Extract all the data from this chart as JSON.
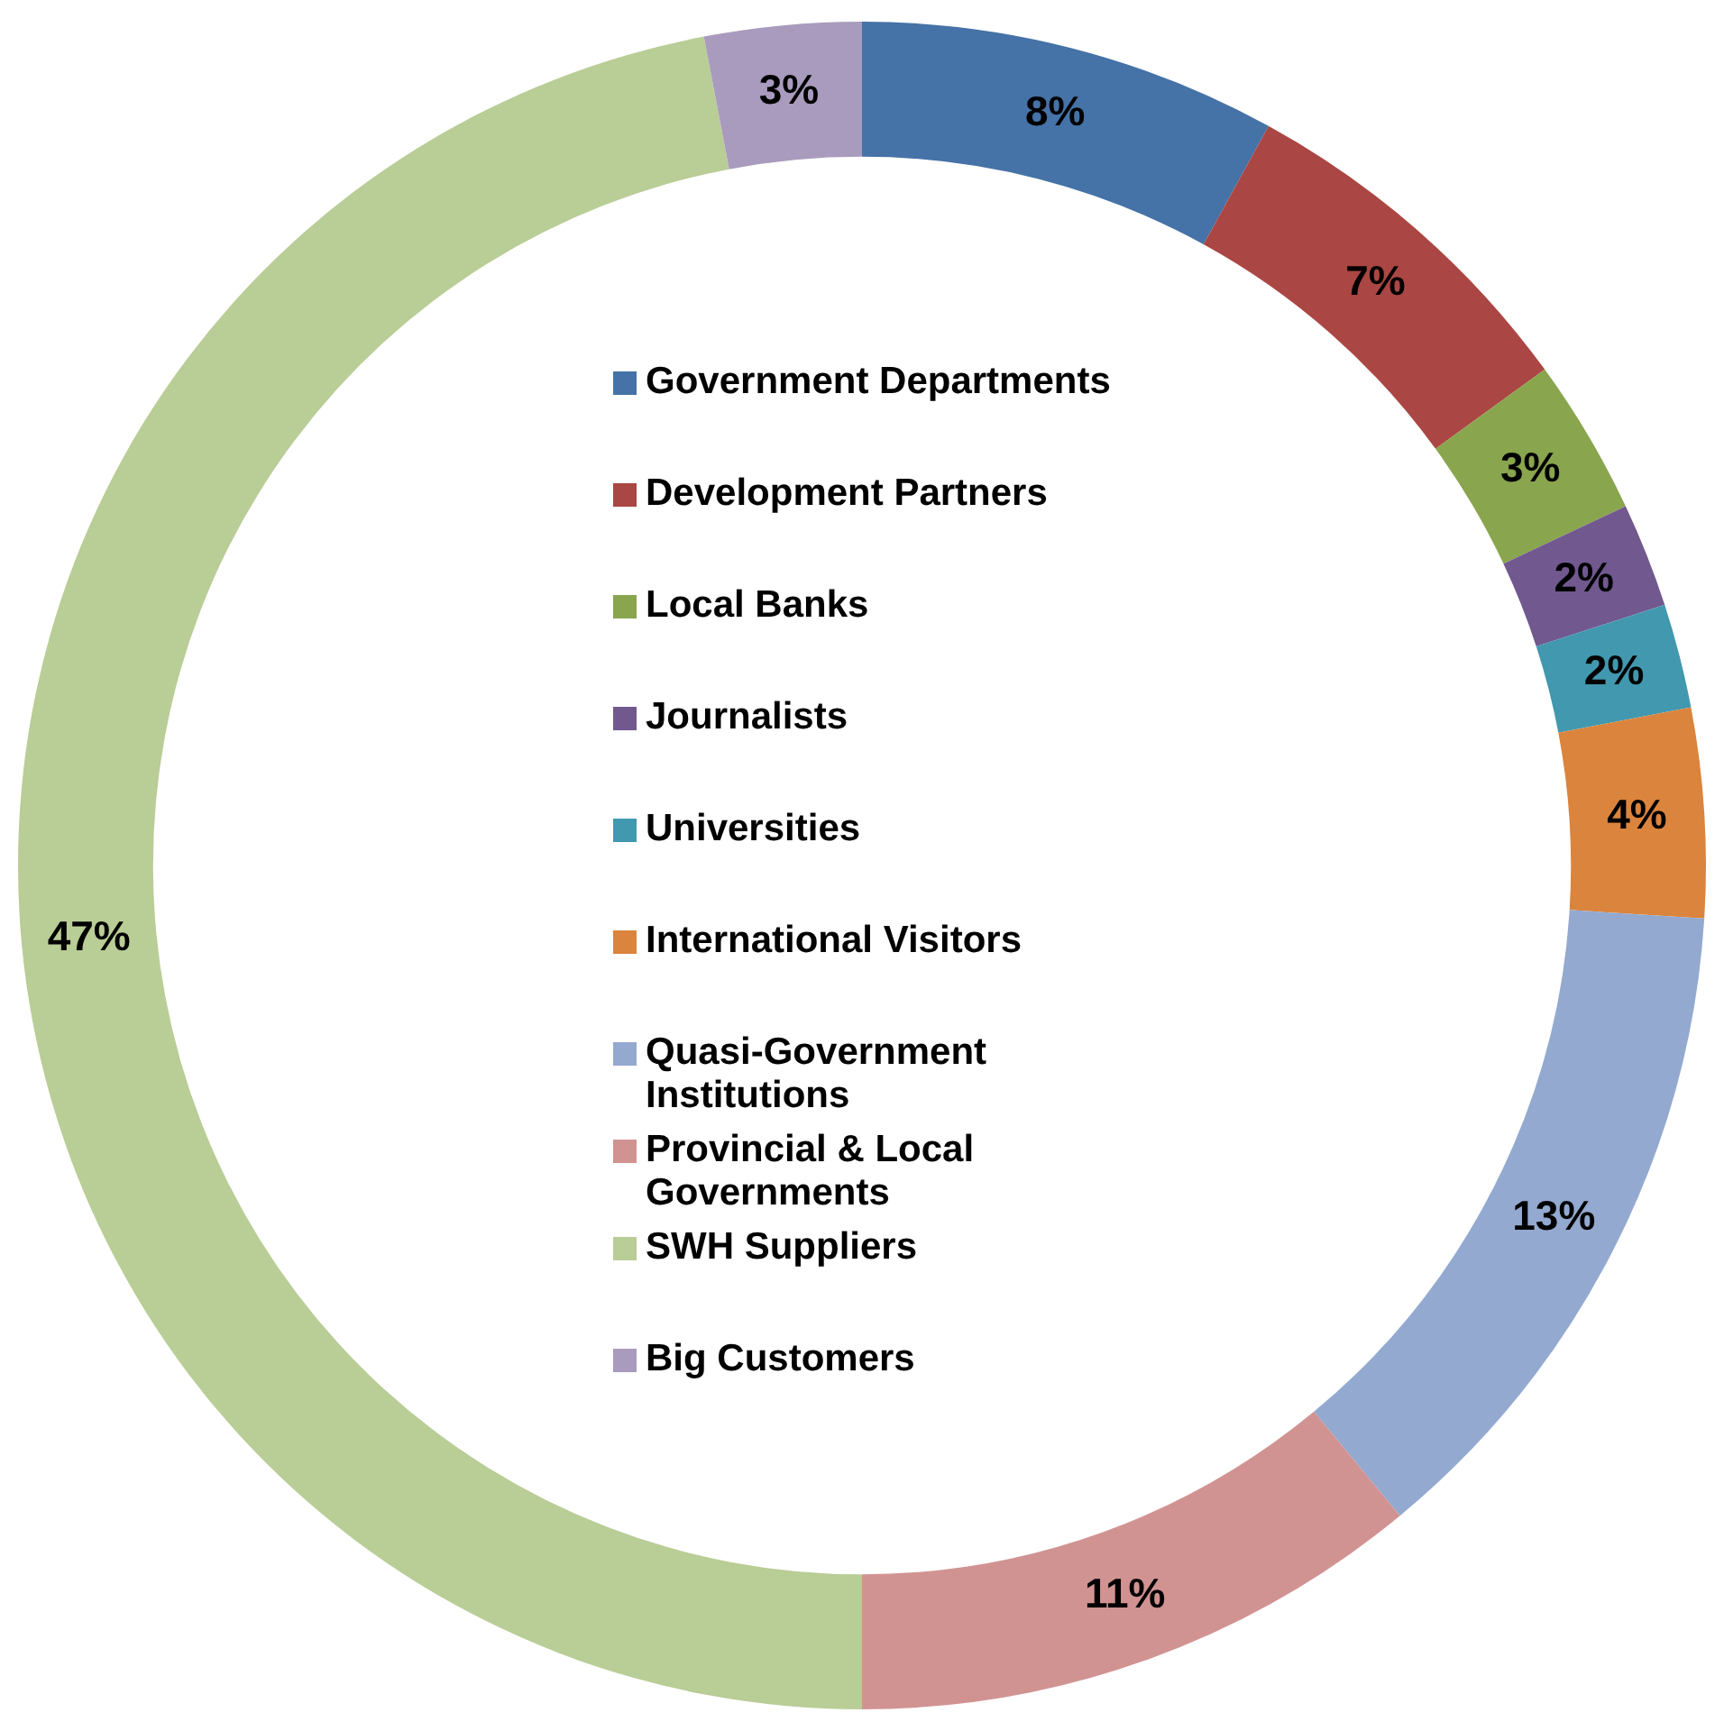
{
  "chart_data": {
    "type": "donut",
    "categories": [
      "Government Departments",
      "Development Partners",
      "Local Banks",
      "Journalists",
      "Universities",
      "International Visitors",
      "Quasi-Government Institutions",
      "Provincial & Local Governments",
      "SWH Suppliers",
      "Big Customers"
    ],
    "values": [
      8,
      7,
      3,
      2,
      2,
      4,
      13,
      11,
      47,
      3
    ],
    "colors": [
      "#4572a7",
      "#aa4643",
      "#89a54e",
      "#71588f",
      "#4198af",
      "#db843d",
      "#93a9cf",
      "#d19392",
      "#b9cd96",
      "#a99bbd"
    ],
    "value_labels": [
      "8%",
      "7%",
      "3%",
      "2%",
      "2%",
      "4%",
      "13%",
      "11%",
      "47%",
      "3%"
    ],
    "legend": "center"
  }
}
